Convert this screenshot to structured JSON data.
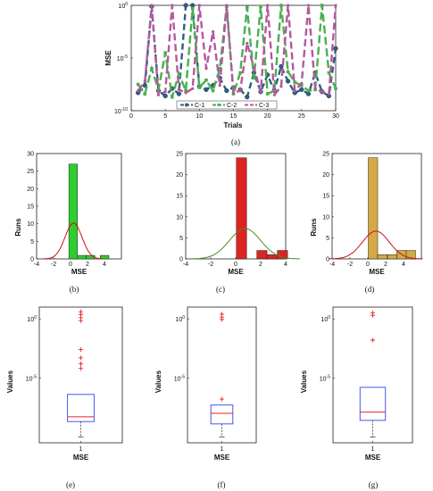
{
  "colors": {
    "c1": "#2e5f82",
    "c2": "#4caf50",
    "c3": "#b5589e",
    "green_bar": "#2ecc2e",
    "red_bar": "#dd2222",
    "gold_bar": "#d4aa44",
    "fit_red": "#cc1111",
    "fit_green": "#4c8c20",
    "box_blue": "#3344ee",
    "median_red": "#ee2222",
    "outlier_red": "#ee2222"
  },
  "chart_data": [
    {
      "id": "a",
      "type": "line",
      "caption": "(a)",
      "xlabel": "Trials",
      "ylabel": "MSE",
      "yscale": "log",
      "xlim": [
        0,
        30
      ],
      "ylim_exp": [
        -10,
        0
      ],
      "x_ticks": [
        0,
        5,
        10,
        15,
        20,
        25,
        30
      ],
      "y_ticks": [
        {
          "exp": 0,
          "label": "10",
          "sup": "0"
        },
        {
          "exp": -5,
          "label": "10",
          "sup": "-5"
        },
        {
          "exp": -10,
          "label": "10",
          "sup": "-10"
        }
      ],
      "legend": [
        "C-1",
        "C-2",
        "C-3"
      ],
      "x": [
        1,
        2,
        3,
        4,
        5,
        6,
        7,
        8,
        9,
        10,
        11,
        12,
        13,
        14,
        15,
        16,
        17,
        18,
        19,
        20,
        21,
        22,
        23,
        24,
        25,
        26,
        27,
        28,
        29,
        30
      ],
      "series": [
        {
          "name": "C-1",
          "log10_values": [
            -8.3,
            -7.6,
            -0.1,
            -8.1,
            -8.6,
            -7.9,
            -8.4,
            0,
            0,
            -7.7,
            -8.0,
            -7.6,
            -6.9,
            -8.1,
            -7.8,
            -8.0,
            -8.7,
            -6.4,
            -8.2,
            -6.6,
            -8.1,
            -5.8,
            -7.2,
            -8.3,
            -8.0,
            -8.4,
            -6.4,
            -8.2,
            -8.6,
            -4.1
          ]
        },
        {
          "name": "C-2",
          "log10_values": [
            -7.5,
            -8.4,
            -6.0,
            -8.0,
            -4.5,
            -8.7,
            -6.5,
            -8.1,
            -0.3,
            -7.8,
            -7.1,
            -8.1,
            -6.0,
            -0.1,
            -8.4,
            -6.4,
            -0.2,
            -6.9,
            -0.1,
            -8.4,
            -8.1,
            0,
            -6.3,
            -7.3,
            -7.6,
            -8.1,
            -8.0,
            0,
            -6.4,
            -7.9
          ]
        },
        {
          "name": "C-3",
          "log10_values": [
            -8.1,
            -7.2,
            0,
            -8.5,
            -8.2,
            0,
            -8.0,
            -8.3,
            -7.9,
            0,
            -6.0,
            -2.5,
            -7.6,
            0,
            -8.3,
            -8.1,
            -3.6,
            -5.9,
            -8.2,
            0,
            -8.5,
            -7.7,
            0,
            -8.1,
            -7.4,
            0,
            -7.9,
            -8.2,
            -8.4,
            0
          ]
        }
      ]
    },
    {
      "id": "b",
      "type": "bar",
      "caption": "(b)",
      "xlabel": "MSE",
      "ylabel": "Runs",
      "xlim": [
        -4,
        6
      ],
      "ylim": [
        0,
        30
      ],
      "x_ticks": [
        -4,
        -2,
        0,
        2,
        4
      ],
      "y_ticks": [
        0,
        5,
        10,
        15,
        20,
        25,
        30
      ],
      "bars": [
        {
          "x0": -0.2,
          "x1": 0.82,
          "value": 27
        },
        {
          "x0": 0.82,
          "x1": 1.84,
          "value": 1
        },
        {
          "x0": 1.84,
          "x1": 2.86,
          "value": 1
        },
        {
          "x0": 3.5,
          "x1": 4.52,
          "value": 1
        }
      ],
      "fit": {
        "mean": 0.35,
        "sd": 1.0,
        "peak": 10.2
      }
    },
    {
      "id": "c",
      "type": "bar",
      "caption": "(c)",
      "xlabel": "MSE",
      "ylabel": "",
      "xlim": [
        -4,
        4
      ],
      "ylim": [
        0,
        25
      ],
      "x_ticks": [
        -4,
        -2,
        0,
        2,
        4
      ],
      "y_ticks": [
        0,
        5,
        10,
        15,
        20,
        25
      ],
      "bars": [
        {
          "x0": 0.05,
          "x1": 0.87,
          "value": 24
        },
        {
          "x0": 1.69,
          "x1": 2.51,
          "value": 2
        },
        {
          "x0": 2.51,
          "x1": 3.33,
          "value": 1
        },
        {
          "x0": 3.33,
          "x1": 4.15,
          "value": 2
        }
      ],
      "fit": {
        "mean": 0.75,
        "sd": 1.25,
        "peak": 7.2
      }
    },
    {
      "id": "d",
      "type": "bar",
      "caption": "(d)",
      "xlabel": "MSE",
      "ylabel": "Runs",
      "xlim": [
        -4,
        6
      ],
      "ylim": [
        0,
        25
      ],
      "x_ticks": [
        -4,
        -2,
        0,
        2,
        4
      ],
      "y_ticks": [
        0,
        5,
        10,
        15,
        20,
        25
      ],
      "bars": [
        {
          "x0": 0.05,
          "x1": 1.1,
          "value": 24
        },
        {
          "x0": 1.1,
          "x1": 2.15,
          "value": 1
        },
        {
          "x0": 2.2,
          "x1": 3.25,
          "value": 1
        },
        {
          "x0": 3.25,
          "x1": 4.3,
          "value": 2
        },
        {
          "x0": 4.3,
          "x1": 5.35,
          "value": 2
        }
      ],
      "fit": {
        "mean": 0.9,
        "sd": 1.5,
        "peak": 6.6
      }
    },
    {
      "id": "e",
      "type": "box",
      "caption": "(e)",
      "xlabel": "MSE",
      "ylabel": "Values",
      "yscale": "log",
      "x_tick": "1",
      "ylim_exp": [
        -10.5,
        1
      ],
      "y_ticks": [
        {
          "exp": 0,
          "label": "10",
          "sup": "0"
        },
        {
          "exp": -5,
          "label": "10",
          "sup": "-5"
        }
      ],
      "box": {
        "whisker_low": -10,
        "q1": -8.7,
        "median": -8.3,
        "q3": -6.4,
        "whisker_high": -6.4
      },
      "outliers": [
        0.6,
        0.35,
        0.1,
        -0.15,
        -2.6,
        -3.3,
        -3.8,
        -4.2
      ]
    },
    {
      "id": "f",
      "type": "box",
      "caption": "(f)",
      "xlabel": "MSE",
      "ylabel": "Values",
      "yscale": "log",
      "x_tick": "1",
      "ylim_exp": [
        -10.5,
        1
      ],
      "y_ticks": [
        {
          "exp": 0,
          "label": "10",
          "sup": "0"
        },
        {
          "exp": -5,
          "label": "10",
          "sup": "-5"
        }
      ],
      "box": {
        "whisker_low": -10,
        "q1": -8.9,
        "median": -8.0,
        "q3": -7.3,
        "whisker_high": -7.3
      },
      "outliers": [
        0.4,
        0.15,
        -0.05,
        -6.8
      ]
    },
    {
      "id": "g",
      "type": "box",
      "caption": "(g)",
      "xlabel": "MSE",
      "ylabel": "Values",
      "yscale": "log",
      "x_tick": "1",
      "ylim_exp": [
        -10.5,
        1
      ],
      "y_ticks": [
        {
          "exp": 0,
          "label": "10",
          "sup": "0"
        },
        {
          "exp": -5,
          "label": "10",
          "sup": "-5"
        }
      ],
      "box": {
        "whisker_low": -10,
        "q1": -8.6,
        "median": -7.9,
        "q3": -5.8,
        "whisker_high": -5.8
      },
      "outliers": [
        0.5,
        0.3,
        -1.8
      ]
    }
  ]
}
